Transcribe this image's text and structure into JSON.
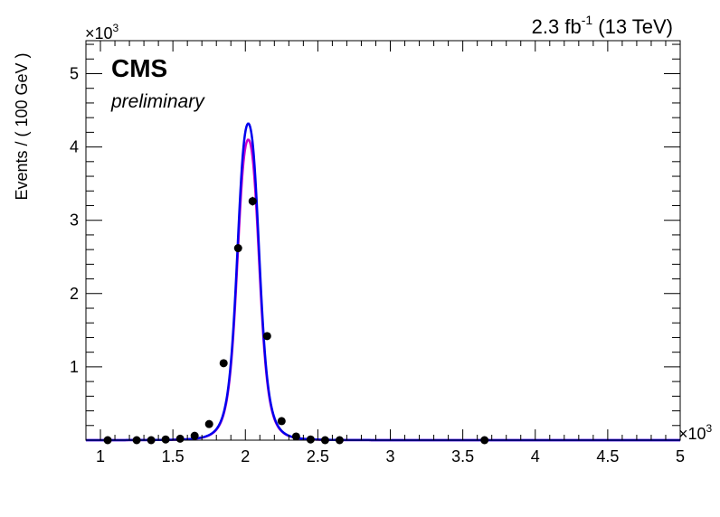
{
  "chart_data": {
    "type": "scatter",
    "title": "",
    "lumi_label": {
      "value": "2.3 fb",
      "exponent": "-1",
      "suffix": " (13 TeV)"
    },
    "cms_label": "CMS",
    "status_label": "preliminary",
    "ylabel": "Events / ( 100 GeV )",
    "xlabel": "",
    "x_multiplier": {
      "base": "×10",
      "exp": "3"
    },
    "y_multiplier": {
      "base": "×10",
      "exp": "3"
    },
    "xlim": [
      0.9,
      5.0
    ],
    "ylim": [
      0,
      5.45
    ],
    "xticks": [
      {
        "v": 1,
        "label": "1"
      },
      {
        "v": 1.5,
        "label": "1.5"
      },
      {
        "v": 2,
        "label": "2"
      },
      {
        "v": 2.5,
        "label": "2.5"
      },
      {
        "v": 3,
        "label": "3"
      },
      {
        "v": 3.5,
        "label": "3.5"
      },
      {
        "v": 4,
        "label": "4"
      },
      {
        "v": 4.5,
        "label": "4.5"
      },
      {
        "v": 5,
        "label": "5"
      }
    ],
    "yticks": [
      {
        "v": 1,
        "label": "1"
      },
      {
        "v": 2,
        "label": "2"
      },
      {
        "v": 3,
        "label": "3"
      },
      {
        "v": 4,
        "label": "4"
      },
      {
        "v": 5,
        "label": "5"
      }
    ],
    "series": [
      {
        "kind": "points",
        "color": "#000000",
        "x": [
          1.05,
          1.25,
          1.35,
          1.45,
          1.55,
          1.65,
          1.75,
          1.85,
          1.95,
          2.05,
          2.15,
          2.25,
          2.35,
          2.45,
          2.55,
          2.65,
          3.65
        ],
        "y": [
          0.0,
          0.0,
          0.0,
          0.01,
          0.02,
          0.06,
          0.22,
          1.05,
          2.62,
          3.26,
          1.42,
          0.26,
          0.05,
          0.01,
          0.0,
          0.0,
          0.0
        ],
        "err": [
          0,
          0,
          0,
          0,
          0,
          0,
          0,
          0,
          0,
          0.06,
          0,
          0,
          0,
          0,
          0,
          0,
          0
        ]
      },
      {
        "kind": "curve",
        "color": "#cc00cc",
        "peak_x": 2.02,
        "peak_y": 4.1,
        "width": 0.085
      },
      {
        "kind": "curve",
        "color": "#0000ee",
        "peak_x": 2.02,
        "peak_y": 4.32,
        "width": 0.085
      }
    ]
  }
}
